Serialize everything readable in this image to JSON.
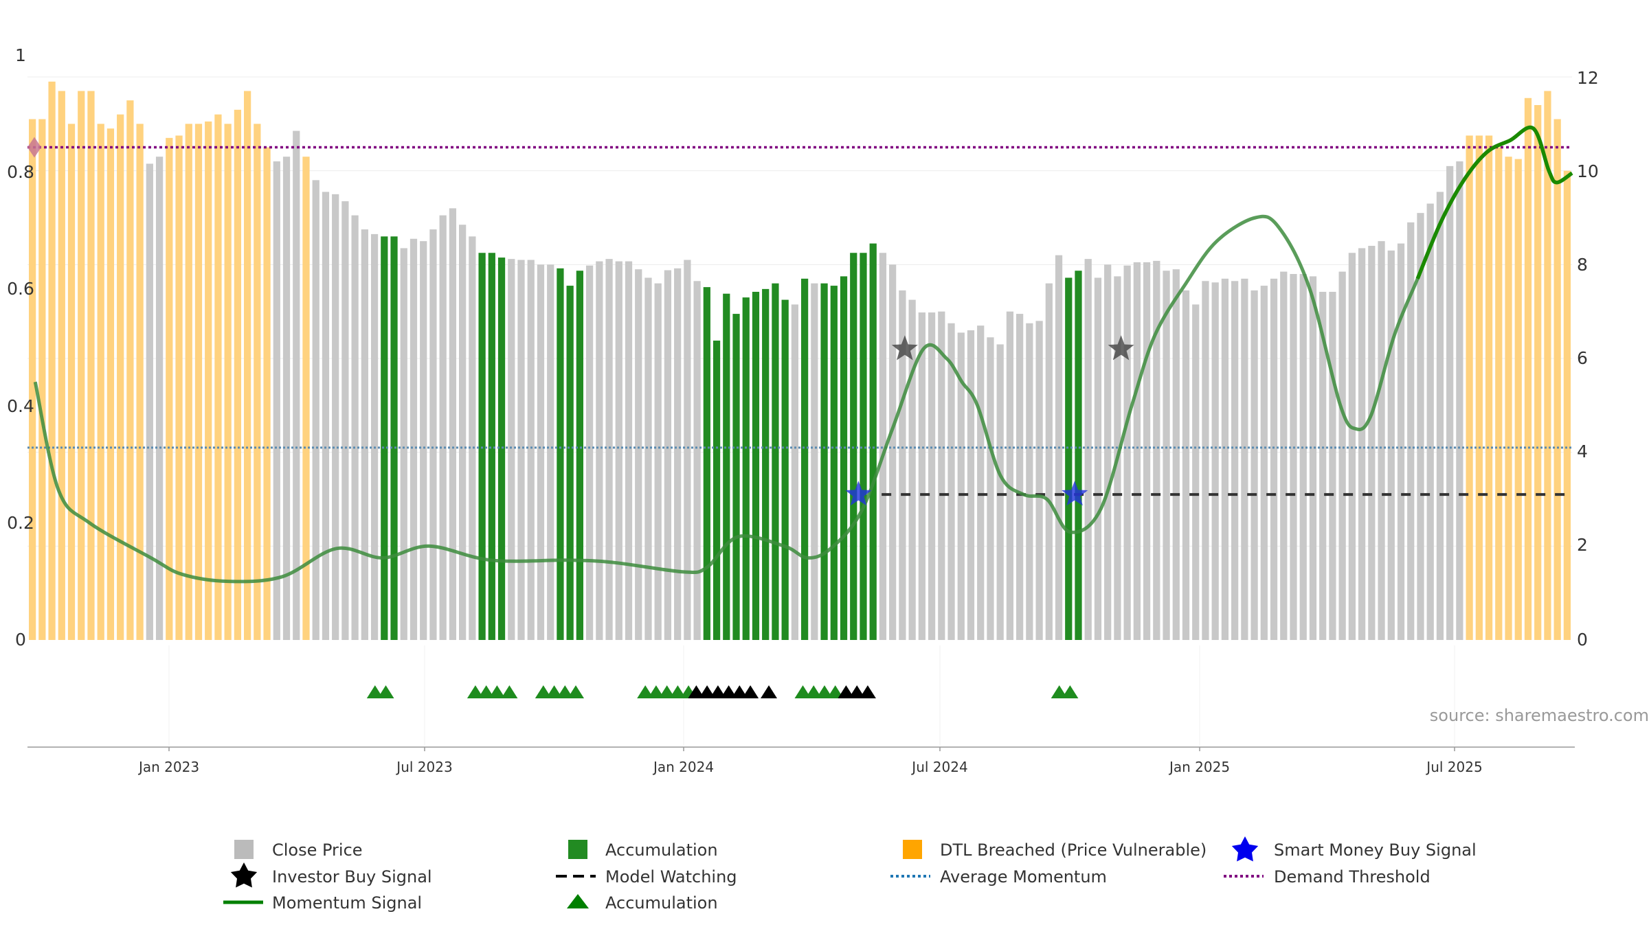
{
  "chart_data": {
    "type": "bar",
    "title": "",
    "colors": {
      "close": "#c8c8c8",
      "accumulation": "#228b22",
      "dtl": "#ffd27f",
      "momentum": "#3d8c3d",
      "momentum_bold": "#1a8a00",
      "avg_momentum": "#5a8ab0",
      "demand": "#800080",
      "watching": "#333333",
      "investor_star": "#444444",
      "smart_star": "#2233dd",
      "acc_triangle": "#1e8c1e",
      "black_triangle": "#000000",
      "threshold_marker": "#c87890"
    },
    "left_axis": {
      "ticks": [
        "1",
        "0.8",
        "0.6",
        "0.4",
        "0.2",
        "0"
      ],
      "range": [
        0,
        1
      ]
    },
    "right_axis": {
      "ticks": [
        "12",
        "10",
        "8",
        "6",
        "4",
        "2",
        "0"
      ],
      "range": [
        0,
        12
      ]
    },
    "x_ticks": [
      "Jan 2023",
      "Jul 2023",
      "Jan 2024",
      "Jul 2024",
      "Jan 2025",
      "Jul 2025"
    ],
    "close_price": [
      11.1,
      11.1,
      11.9,
      11.7,
      11.0,
      11.7,
      11.7,
      11.0,
      10.9,
      11.2,
      11.5,
      11.0,
      10.15,
      10.3,
      10.7,
      10.75,
      11.0,
      11.0,
      11.05,
      11.2,
      11.0,
      11.3,
      11.7,
      11.0,
      10.5,
      10.2,
      10.3,
      10.85,
      10.3,
      9.8,
      9.55,
      9.5,
      9.35,
      9.05,
      8.75,
      8.65,
      8.6,
      8.6,
      8.35,
      8.55,
      8.5,
      8.75,
      9.05,
      9.2,
      8.85,
      8.6,
      8.25,
      8.25,
      8.15,
      8.12,
      8.1,
      8.1,
      8.0,
      8.0,
      7.92,
      7.55,
      7.87,
      7.98,
      8.07,
      8.12,
      8.07,
      8.07,
      7.9,
      7.72,
      7.6,
      7.88,
      7.92,
      8.1,
      7.65,
      7.52,
      6.38,
      7.38,
      6.95,
      7.3,
      7.42,
      7.48,
      7.6,
      7.25,
      7.15,
      7.7,
      7.6,
      7.6,
      7.55,
      7.75,
      8.25,
      8.25,
      8.45,
      8.25,
      8.0,
      7.45,
      7.25,
      6.98,
      6.98,
      7.0,
      6.75,
      6.55,
      6.6,
      6.7,
      6.45,
      6.3,
      7.0,
      6.95,
      6.75,
      6.8,
      7.6,
      8.2,
      7.72,
      7.87,
      8.12,
      7.72,
      8.0,
      7.75,
      7.98,
      8.05,
      8.05,
      8.08,
      7.87,
      7.9,
      7.45,
      7.15,
      7.65,
      7.62,
      7.7,
      7.65,
      7.7,
      7.45,
      7.55,
      7.7,
      7.85,
      7.8,
      7.8,
      7.75,
      7.42,
      7.42,
      7.85,
      8.25,
      8.35,
      8.4,
      8.5,
      8.3,
      8.45,
      8.9,
      9.1,
      9.3,
      9.55,
      10.1,
      10.2,
      10.75,
      10.75,
      10.75,
      10.5,
      10.3,
      10.25,
      11.55,
      11.4,
      11.7,
      11.1,
      10.0
    ],
    "accumulation_indices": [
      36,
      37,
      46,
      47,
      48,
      54,
      55,
      56,
      69,
      70,
      71,
      72,
      73,
      74,
      75,
      76,
      77,
      79,
      81,
      82,
      83,
      84,
      85,
      86,
      106,
      107
    ],
    "dtl_indices": [
      0,
      1,
      2,
      3,
      4,
      5,
      6,
      7,
      8,
      9,
      10,
      11,
      14,
      15,
      16,
      17,
      18,
      19,
      20,
      21,
      22,
      23,
      24,
      28,
      147,
      148,
      149,
      150,
      151,
      152,
      153,
      154,
      155,
      156,
      157
    ],
    "momentum_x": [
      0.005,
      0.02,
      0.04,
      0.08,
      0.1,
      0.13,
      0.165,
      0.2,
      0.23,
      0.26,
      0.3,
      0.35,
      0.38,
      0.425,
      0.44,
      0.46,
      0.49,
      0.505,
      0.52,
      0.54,
      0.56,
      0.58,
      0.595,
      0.605,
      0.615,
      0.63,
      0.645,
      0.66,
      0.675,
      0.695,
      0.715,
      0.73,
      0.75,
      0.77,
      0.795,
      0.81,
      0.83,
      0.85,
      0.86,
      0.87,
      0.885,
      0.9,
      0.915,
      0.93,
      0.945,
      0.96,
      0.975,
      0.985,
      0.99,
      1.0
    ],
    "momentum_y": [
      5.5,
      3.2,
      2.5,
      1.75,
      1.4,
      1.25,
      1.35,
      1.95,
      1.75,
      2.0,
      1.7,
      1.7,
      1.65,
      1.45,
      1.55,
      2.2,
      2.0,
      1.75,
      1.95,
      2.75,
      4.5,
      6.2,
      6.0,
      5.5,
      5.0,
      3.5,
      3.1,
      3.0,
      2.3,
      2.8,
      5.0,
      6.5,
      7.6,
      8.5,
      9.0,
      8.8,
      7.5,
      5.0,
      4.5,
      4.8,
      6.5,
      7.7,
      8.9,
      9.8,
      10.4,
      10.65,
      10.9,
      10.0,
      9.75,
      9.95
    ],
    "momentum_bold_index": 41,
    "average_momentum": 4.1,
    "demand_threshold": 10.5,
    "model_watching": {
      "y": 3.1,
      "x_start": 0.553,
      "x_end": 1.0
    },
    "smart_money_buy": [
      {
        "x": 0.538,
        "y": 3.1
      },
      {
        "x": 0.678,
        "y": 3.1
      }
    ],
    "investor_buy": [
      {
        "x": 0.568,
        "y": 6.2
      },
      {
        "x": 0.708,
        "y": 6.2
      }
    ],
    "acc_triangles": [
      0.225,
      0.232,
      0.29,
      0.297,
      0.304,
      0.312,
      0.334,
      0.341,
      0.348,
      0.355,
      0.4,
      0.407,
      0.414,
      0.421,
      0.428,
      0.502,
      0.509,
      0.516,
      0.523,
      0.668,
      0.675
    ],
    "black_triangles": [
      0.433,
      0.44,
      0.447,
      0.454,
      0.461,
      0.468,
      0.48,
      0.53,
      0.537,
      0.544
    ],
    "source": "source: sharemaestro.com",
    "legend": [
      {
        "label": "Close Price",
        "icon": "square",
        "color": "#bbbbbb"
      },
      {
        "label": "Accumulation",
        "icon": "square",
        "color": "#228b22"
      },
      {
        "label": "DTL Breached (Price Vulnerable)",
        "icon": "square",
        "color": "#ffa500"
      },
      {
        "label": "Smart Money Buy Signal",
        "icon": "star",
        "color": "#0000ee"
      },
      {
        "label": "Investor Buy Signal",
        "icon": "star",
        "color": "#000000"
      },
      {
        "label": "Model Watching",
        "icon": "dash",
        "color": "#000000"
      },
      {
        "label": "Average Momentum",
        "icon": "dots",
        "color": "#1f77b4"
      },
      {
        "label": "Demand Threshold",
        "icon": "dots",
        "color": "#800080"
      },
      {
        "label": "Momentum Signal",
        "icon": "line",
        "color": "#008000"
      },
      {
        "label": "Accumulation",
        "icon": "triangle",
        "color": "#008000"
      }
    ]
  }
}
